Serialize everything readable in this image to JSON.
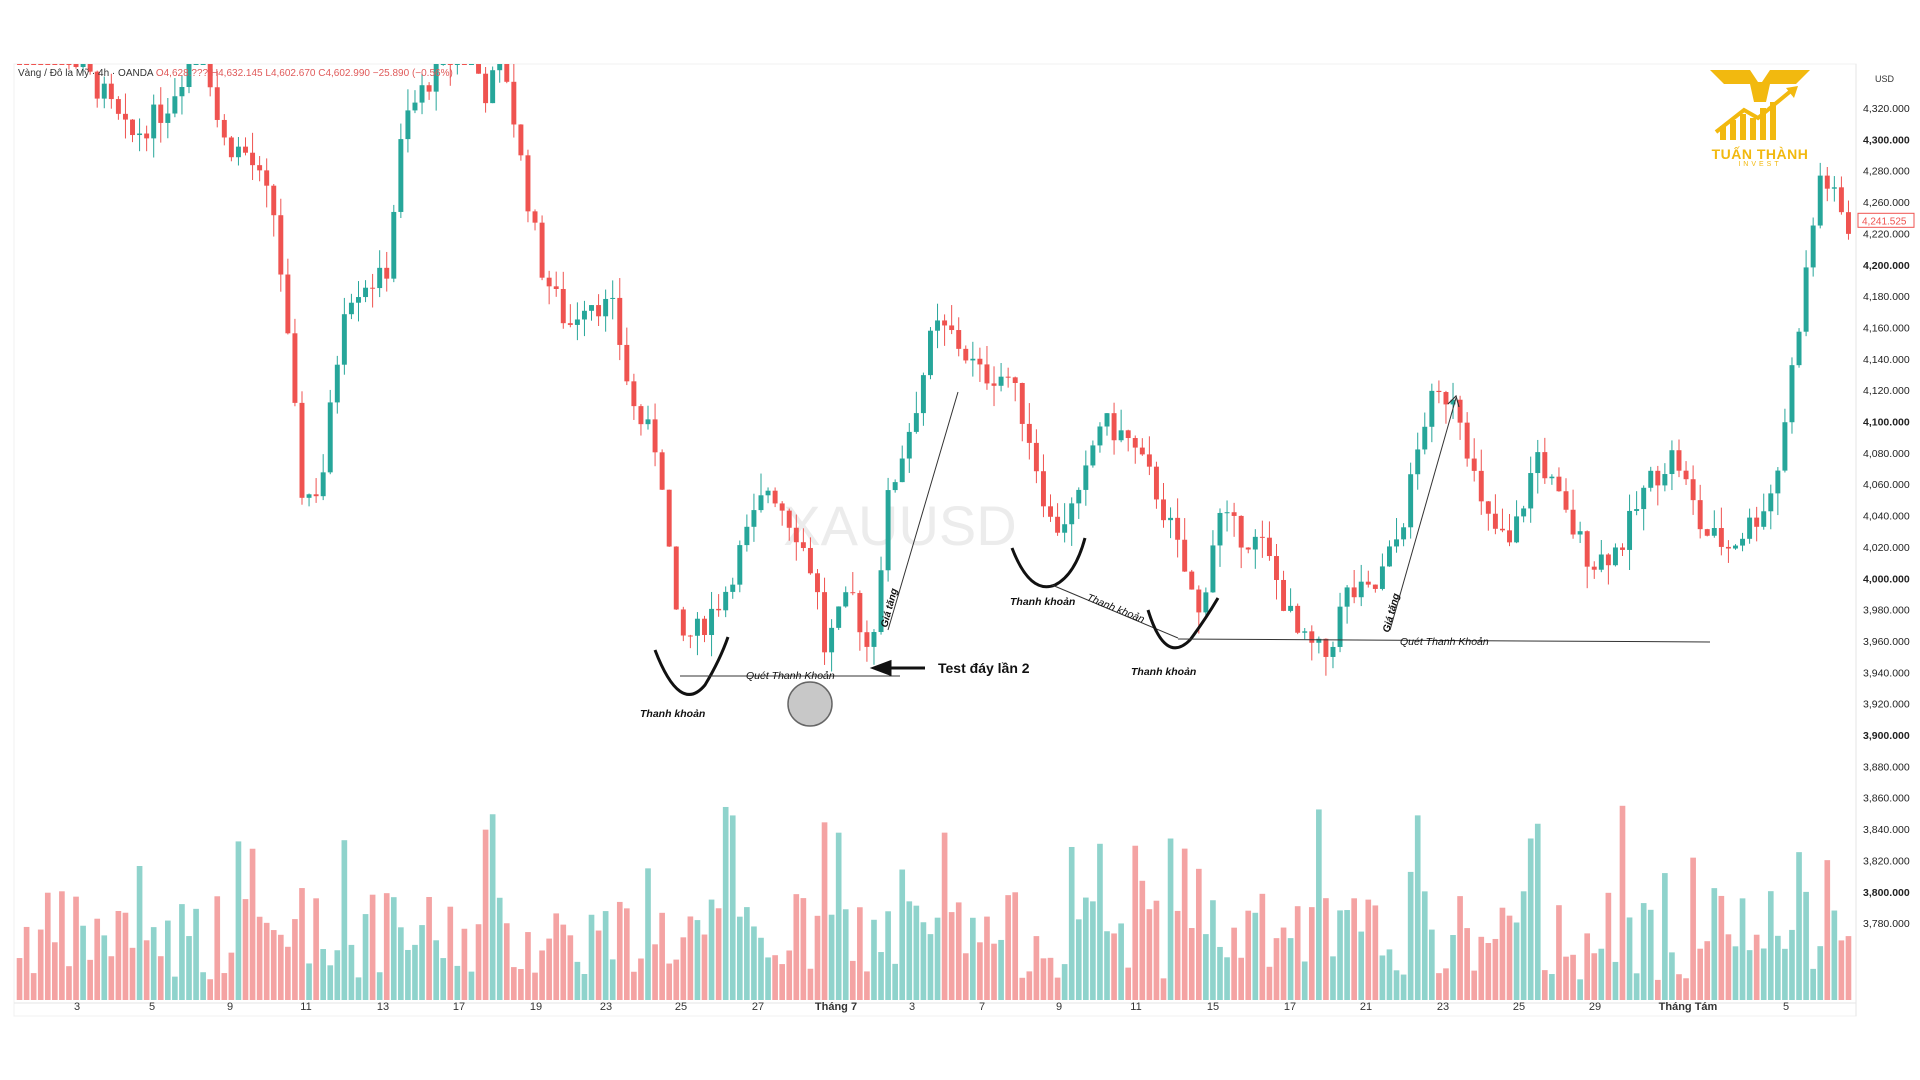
{
  "legend": {
    "symbol": "Vàng / Đô la Mỹ · 4h · OANDA",
    "o": "O4,628.???",
    "h": "H4,632.145",
    "l": "L4,602.670",
    "c": "C4,602.990",
    "chg": "−25.890 (−0.56%)"
  },
  "watermark": "XAUUSD",
  "logo": {
    "name": "TUẤN THÀNH",
    "sub": "INVEST"
  },
  "axis": {
    "currency": "USD",
    "current_price": "4,241.525",
    "y_ticks": [
      "4,320.000",
      "4,300.000",
      "4,280.000",
      "4,260.000",
      "4,220.000",
      "4,200.000",
      "4,180.000",
      "4,160.000",
      "4,140.000",
      "4,120.000",
      "4,100.000",
      "4,080.000",
      "4,060.000",
      "4,040.000",
      "4,020.000",
      "4,000.000",
      "3,980.000",
      "3,960.000",
      "3,940.000",
      "3,920.000",
      "3,900.000",
      "3,880.000",
      "3,860.000",
      "3,840.000",
      "3,820.000",
      "3,800.000",
      "3,780.000"
    ],
    "x_ticks": [
      "3",
      "5",
      "9",
      "11",
      "13",
      "17",
      "19",
      "23",
      "25",
      "27",
      "Tháng 7",
      "3",
      "7",
      "9",
      "11",
      "15",
      "17",
      "21",
      "23",
      "25",
      "29",
      "Tháng Tám",
      "5"
    ]
  },
  "annotations": {
    "thanh_khoan": "Thanh khoản",
    "quet_thanh_khoan": "Quét Thanh Khoản",
    "test_day": "Test đáy lần 2",
    "gia_tang": "Giá tăng"
  },
  "colors": {
    "up": "#26a69a",
    "down": "#ef5350",
    "vol_up": "#8fd3cc",
    "vol_down": "#f4a3a3"
  },
  "chart_data": {
    "type": "candlestick",
    "symbol": "XAUUSD",
    "timeframe": "4h",
    "ylim": [
      3770,
      4340
    ],
    "current_price": 4241.525,
    "close_path": [
      {
        "x": 0.0,
        "y": 4390
      },
      {
        "x": 0.045,
        "y": 4330
      },
      {
        "x": 0.06,
        "y": 4300
      },
      {
        "x": 0.08,
        "y": 4320
      },
      {
        "x": 0.1,
        "y": 4370
      },
      {
        "x": 0.11,
        "y": 4300
      },
      {
        "x": 0.125,
        "y": 4290
      },
      {
        "x": 0.14,
        "y": 4250
      },
      {
        "x": 0.155,
        "y": 4070
      },
      {
        "x": 0.165,
        "y": 4080
      },
      {
        "x": 0.178,
        "y": 4200
      },
      {
        "x": 0.19,
        "y": 4210
      },
      {
        "x": 0.2,
        "y": 4210
      },
      {
        "x": 0.21,
        "y": 4310
      },
      {
        "x": 0.225,
        "y": 4340
      },
      {
        "x": 0.245,
        "y": 4360
      },
      {
        "x": 0.255,
        "y": 4330
      },
      {
        "x": 0.265,
        "y": 4350
      },
      {
        "x": 0.275,
        "y": 4280
      },
      {
        "x": 0.285,
        "y": 4220
      },
      {
        "x": 0.3,
        "y": 4180
      },
      {
        "x": 0.31,
        "y": 4200
      },
      {
        "x": 0.325,
        "y": 4190
      },
      {
        "x": 0.335,
        "y": 4130
      },
      {
        "x": 0.35,
        "y": 4100
      },
      {
        "x": 0.36,
        "y": 3980
      },
      {
        "x": 0.37,
        "y": 3985
      },
      {
        "x": 0.385,
        "y": 4010
      },
      {
        "x": 0.395,
        "y": 4040
      },
      {
        "x": 0.41,
        "y": 4080
      },
      {
        "x": 0.425,
        "y": 4050
      },
      {
        "x": 0.435,
        "y": 4020
      },
      {
        "x": 0.44,
        "y": 3975
      },
      {
        "x": 0.455,
        "y": 4010
      },
      {
        "x": 0.465,
        "y": 3970
      },
      {
        "x": 0.475,
        "y": 4070
      },
      {
        "x": 0.49,
        "y": 4130
      },
      {
        "x": 0.5,
        "y": 4180
      },
      {
        "x": 0.51,
        "y": 4175
      },
      {
        "x": 0.525,
        "y": 4150
      },
      {
        "x": 0.54,
        "y": 4150
      },
      {
        "x": 0.55,
        "y": 4120
      },
      {
        "x": 0.565,
        "y": 4050
      },
      {
        "x": 0.58,
        "y": 4070
      },
      {
        "x": 0.59,
        "y": 4120
      },
      {
        "x": 0.605,
        "y": 4110
      },
      {
        "x": 0.62,
        "y": 4080
      },
      {
        "x": 0.63,
        "y": 4050
      },
      {
        "x": 0.645,
        "y": 3995
      },
      {
        "x": 0.655,
        "y": 4060
      },
      {
        "x": 0.665,
        "y": 4050
      },
      {
        "x": 0.68,
        "y": 4040
      },
      {
        "x": 0.69,
        "y": 4010
      },
      {
        "x": 0.7,
        "y": 3980
      },
      {
        "x": 0.715,
        "y": 3970
      },
      {
        "x": 0.725,
        "y": 4010
      },
      {
        "x": 0.74,
        "y": 4010
      },
      {
        "x": 0.755,
        "y": 4050
      },
      {
        "x": 0.77,
        "y": 4130
      },
      {
        "x": 0.785,
        "y": 4140
      },
      {
        "x": 0.8,
        "y": 4060
      },
      {
        "x": 0.815,
        "y": 4040
      },
      {
        "x": 0.83,
        "y": 4100
      },
      {
        "x": 0.845,
        "y": 4060
      },
      {
        "x": 0.86,
        "y": 4030
      },
      {
        "x": 0.875,
        "y": 4040
      },
      {
        "x": 0.89,
        "y": 4080
      },
      {
        "x": 0.905,
        "y": 4100
      },
      {
        "x": 0.92,
        "y": 4050
      },
      {
        "x": 0.935,
        "y": 4040
      },
      {
        "x": 0.95,
        "y": 4060
      },
      {
        "x": 0.96,
        "y": 4080
      },
      {
        "x": 0.975,
        "y": 4200
      },
      {
        "x": 0.985,
        "y": 4280
      },
      {
        "x": 1.0,
        "y": 4242
      }
    ]
  }
}
